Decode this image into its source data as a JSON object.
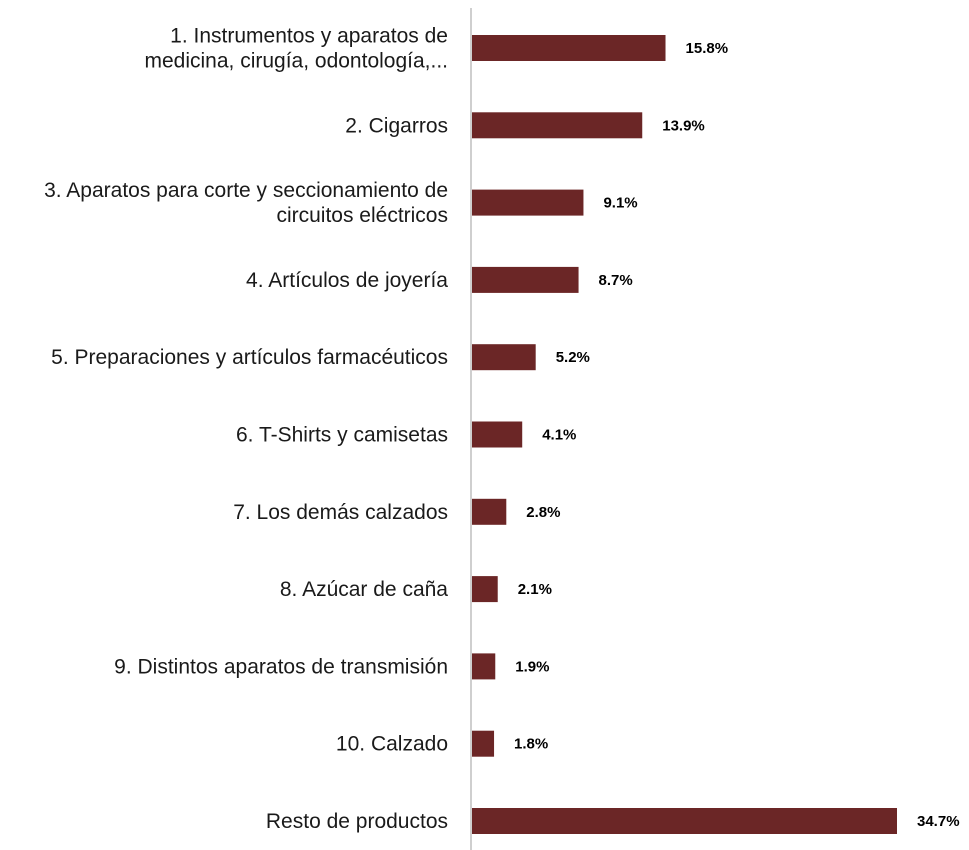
{
  "chart_data": {
    "type": "bar",
    "orientation": "horizontal",
    "categories": [
      [
        "1. Instrumentos y aparatos de",
        "medicina, cirugía, odontología,..."
      ],
      [
        "2. Cigarros"
      ],
      [
        "3. Aparatos para corte y seccionamiento de",
        "circuitos eléctricos"
      ],
      [
        "4. Artículos de joyería"
      ],
      [
        "5. Preparaciones y artículos farmacéuticos"
      ],
      [
        "6. T-Shirts y camisetas"
      ],
      [
        "7. Los demás calzados"
      ],
      [
        "8. Azúcar de caña"
      ],
      [
        "9. Distintos aparatos de transmisión"
      ],
      [
        "10. Calzado"
      ],
      [
        "Resto de productos"
      ]
    ],
    "values": [
      15.8,
      13.9,
      9.1,
      8.7,
      5.2,
      4.1,
      2.8,
      2.1,
      1.9,
      1.8,
      34.7
    ],
    "value_labels": [
      "15.8%",
      "13.9%",
      "9.1%",
      "8.7%",
      "5.2%",
      "4.1%",
      "2.8%",
      "2.1%",
      "1.9%",
      "1.8%",
      "34.7%"
    ],
    "unit": "%",
    "xlim": [
      0,
      34.7
    ],
    "title": "",
    "xlabel": "",
    "ylabel": "",
    "grid": false,
    "legend": "none",
    "bar_color": "#6B2626",
    "axis_color": "#BFBFBF"
  }
}
